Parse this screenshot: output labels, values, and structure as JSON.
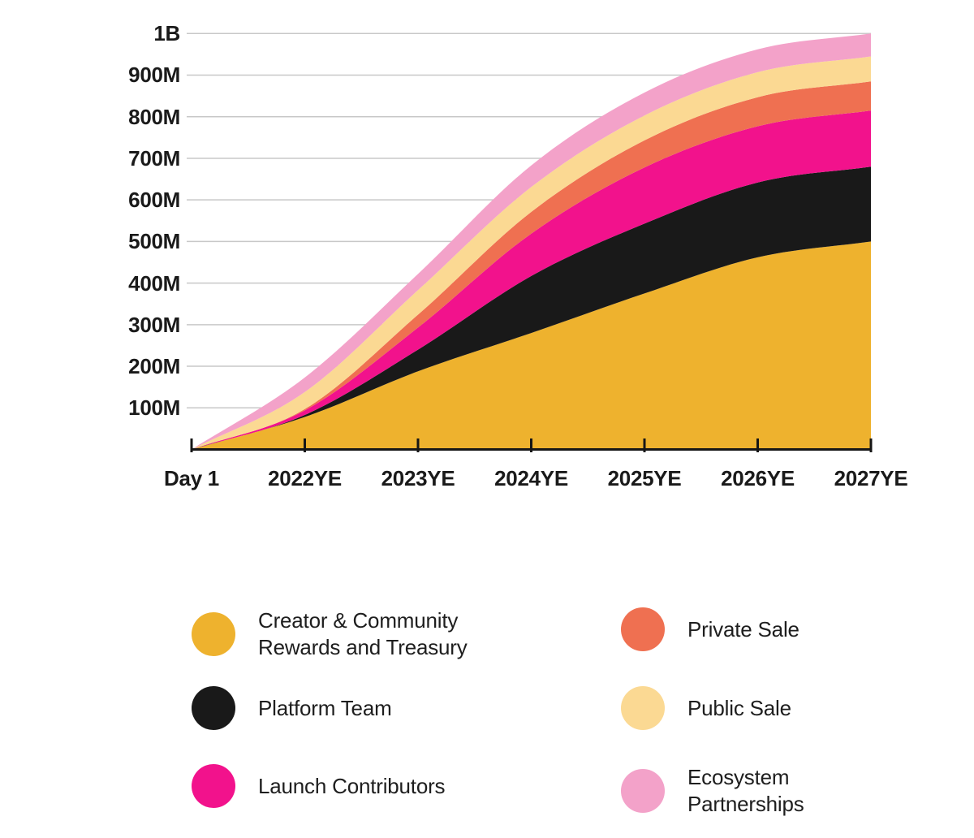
{
  "axes": {
    "y_labels": [
      "1B",
      "900M",
      "800M",
      "700M",
      "600M",
      "500M",
      "400M",
      "300M",
      "200M",
      "100M"
    ],
    "x_labels": [
      "Day 1",
      "2022YE",
      "2023YE",
      "2024YE",
      "2025YE",
      "2026YE",
      "2027YE"
    ]
  },
  "chart_data": {
    "type": "area",
    "stacked": true,
    "x_categories": [
      "Day 1",
      "2022YE",
      "2023YE",
      "2024YE",
      "2025YE",
      "2026YE",
      "2027YE"
    ],
    "y_unit": "tokens, millions (M) / billions (B)",
    "ylim_m": [
      0,
      1000
    ],
    "total_supply_m": 1000,
    "y_gridlines_m": [
      100,
      200,
      300,
      400,
      500,
      600,
      700,
      800,
      900,
      1000
    ],
    "y_tick_labels": [
      "100M",
      "200M",
      "300M",
      "400M",
      "500M",
      "600M",
      "700M",
      "800M",
      "900M",
      "1B"
    ],
    "grid": true,
    "legend_position": "bottom",
    "series_bottom_to_top": [
      {
        "name": "Creator & Community Rewards and Treasury",
        "color": "#EEB22E",
        "values_m": [
          0,
          78,
          188,
          280,
          375,
          462,
          500
        ]
      },
      {
        "name": "Platform Team",
        "color": "#191919",
        "values_m": [
          0,
          5,
          52,
          137,
          168,
          180,
          180
        ]
      },
      {
        "name": "Launch Contributors",
        "color": "#F2128C",
        "values_m": [
          0,
          11,
          53,
          102,
          135,
          135,
          135
        ]
      },
      {
        "name": "Private Sale",
        "color": "#EF7051",
        "values_m": [
          0,
          3,
          31,
          52,
          65,
          70,
          70
        ]
      },
      {
        "name": "Public Sale",
        "color": "#FBD993",
        "values_m": [
          0,
          41,
          59,
          60,
          60,
          60,
          60
        ]
      },
      {
        "name": "Ecosystem Partnerships",
        "color": "#F3A2C9",
        "values_m": [
          0,
          35,
          39,
          52,
          55,
          55,
          55
        ]
      }
    ]
  },
  "legend": {
    "items": [
      {
        "label_lines": [
          "Creator & Community",
          "Rewards and Treasury"
        ],
        "color": "#EEB22E"
      },
      {
        "label_lines": [
          "Platform Team"
        ],
        "color": "#191919"
      },
      {
        "label_lines": [
          "Launch Contributors"
        ],
        "color": "#F2128C"
      },
      {
        "label_lines": [
          "Private Sale"
        ],
        "color": "#EF7051"
      },
      {
        "label_lines": [
          "Public Sale"
        ],
        "color": "#FBD993"
      },
      {
        "label_lines": [
          "Ecosystem",
          "Partnerships"
        ],
        "color": "#F3A2C9"
      }
    ]
  },
  "colors": {
    "axis": "#161616",
    "gridline": "#C8C8C8",
    "text": "#1A1A1A"
  }
}
